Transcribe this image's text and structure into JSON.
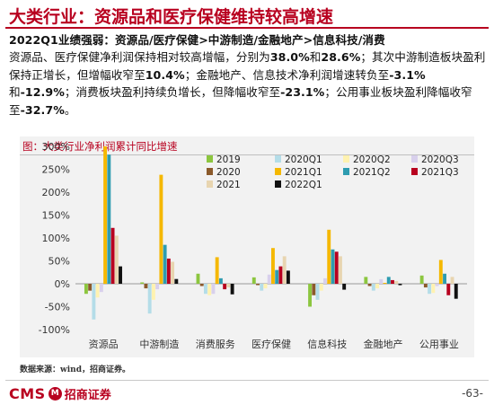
{
  "header": {
    "title": "大类行业：资源品和医疗保健维持较高增速"
  },
  "summary": {
    "lead": "2022Q1业绩强弱：资源品/医疗保健>中游制造/金融地产>信息科技/消费",
    "t1": "资源品、医疗保健净利润保持相对较高增幅，分别为",
    "v1": "38.0%",
    "t2": "和",
    "v2": "28.6%",
    "t3": "；其次中游制造板块盈利保持正增长，但增幅收窄至",
    "v3": "10.4%",
    "t4": "；金融地产、信息技术净利润增速转负至",
    "v4": "-3.1%",
    "t5": "和",
    "v5": "-12.9%",
    "t6": "；消费板块盈利持续负增长，但降幅收窄至",
    "v6": "-23.1%",
    "t7": "；公用事业板块盈利降幅收窄至",
    "v7": "-32.7%",
    "t8": "。"
  },
  "chart_panel": {
    "title": "图：大类行业净利润累计同比增速"
  },
  "chart_data": {
    "type": "bar",
    "categories": [
      "资源品",
      "中游制造",
      "消费服务",
      "医疗保健",
      "信息科技",
      "金融地产",
      "公用事业"
    ],
    "ylim": [
      -100,
      300
    ],
    "yticks": [
      -100,
      -50,
      0,
      50,
      100,
      150,
      200,
      250,
      300
    ],
    "ytick_labels": [
      "-100%",
      "-50%",
      "0%",
      "50%",
      "100%",
      "150%",
      "200%",
      "250%",
      "300%"
    ],
    "legend_position": "top-right",
    "series": [
      {
        "name": "2019",
        "color": "#8cc63f",
        "values": [
          -22,
          3,
          22,
          14,
          -50,
          15,
          18
        ]
      },
      {
        "name": "2020",
        "color": "#8b5a2b",
        "values": [
          -15,
          -10,
          -5,
          -3,
          -25,
          -5,
          -8
        ]
      },
      {
        "name": "2021",
        "color": "#e8d5b0",
        "values": [
          105,
          48,
          -8,
          60,
          60,
          6,
          15
        ]
      },
      {
        "name": "2020Q1",
        "color": "#b4dde8",
        "values": [
          -78,
          -65,
          -22,
          -15,
          -35,
          -15,
          -22
        ]
      },
      {
        "name": "2021Q1",
        "color": "#f5b800",
        "values": [
          300,
          238,
          58,
          78,
          118,
          2,
          52
        ]
      },
      {
        "name": "2022Q1",
        "color": "#111111",
        "values": [
          38,
          10.4,
          -23.1,
          28.6,
          -12.9,
          -3.1,
          -32.7
        ]
      },
      {
        "name": "2020Q2",
        "color": "#fff2b0",
        "values": [
          -30,
          -35,
          -25,
          -10,
          -15,
          -10,
          -20
        ]
      },
      {
        "name": "2021Q2",
        "color": "#2e9cb0",
        "values": [
          282,
          85,
          12,
          30,
          75,
          15,
          22
        ]
      },
      {
        "name": "2020Q3",
        "color": "#d8d0ec",
        "values": [
          -18,
          -12,
          -22,
          20,
          12,
          10,
          -5
        ]
      },
      {
        "name": "2021Q3",
        "color": "#b8001f",
        "values": [
          122,
          55,
          -12,
          38,
          70,
          8,
          -25
        ]
      }
    ],
    "bar_order": [
      "2019",
      "2020",
      "2020Q1",
      "2020Q2",
      "2020Q3",
      "2021Q1",
      "2021Q2",
      "2021Q3",
      "2021",
      "2022Q1"
    ],
    "legend_order": [
      "2019",
      "2020Q1",
      "2020Q2",
      "2020Q3",
      "2020",
      "2021Q1",
      "2021Q2",
      "2021Q3",
      "2021",
      "2022Q1"
    ]
  },
  "source": "数据来源：wind，招商证券。",
  "footer": {
    "logo_cms": "CMS",
    "logo_mark": "M",
    "logo_cn": "招商证券",
    "page": "-63-"
  }
}
